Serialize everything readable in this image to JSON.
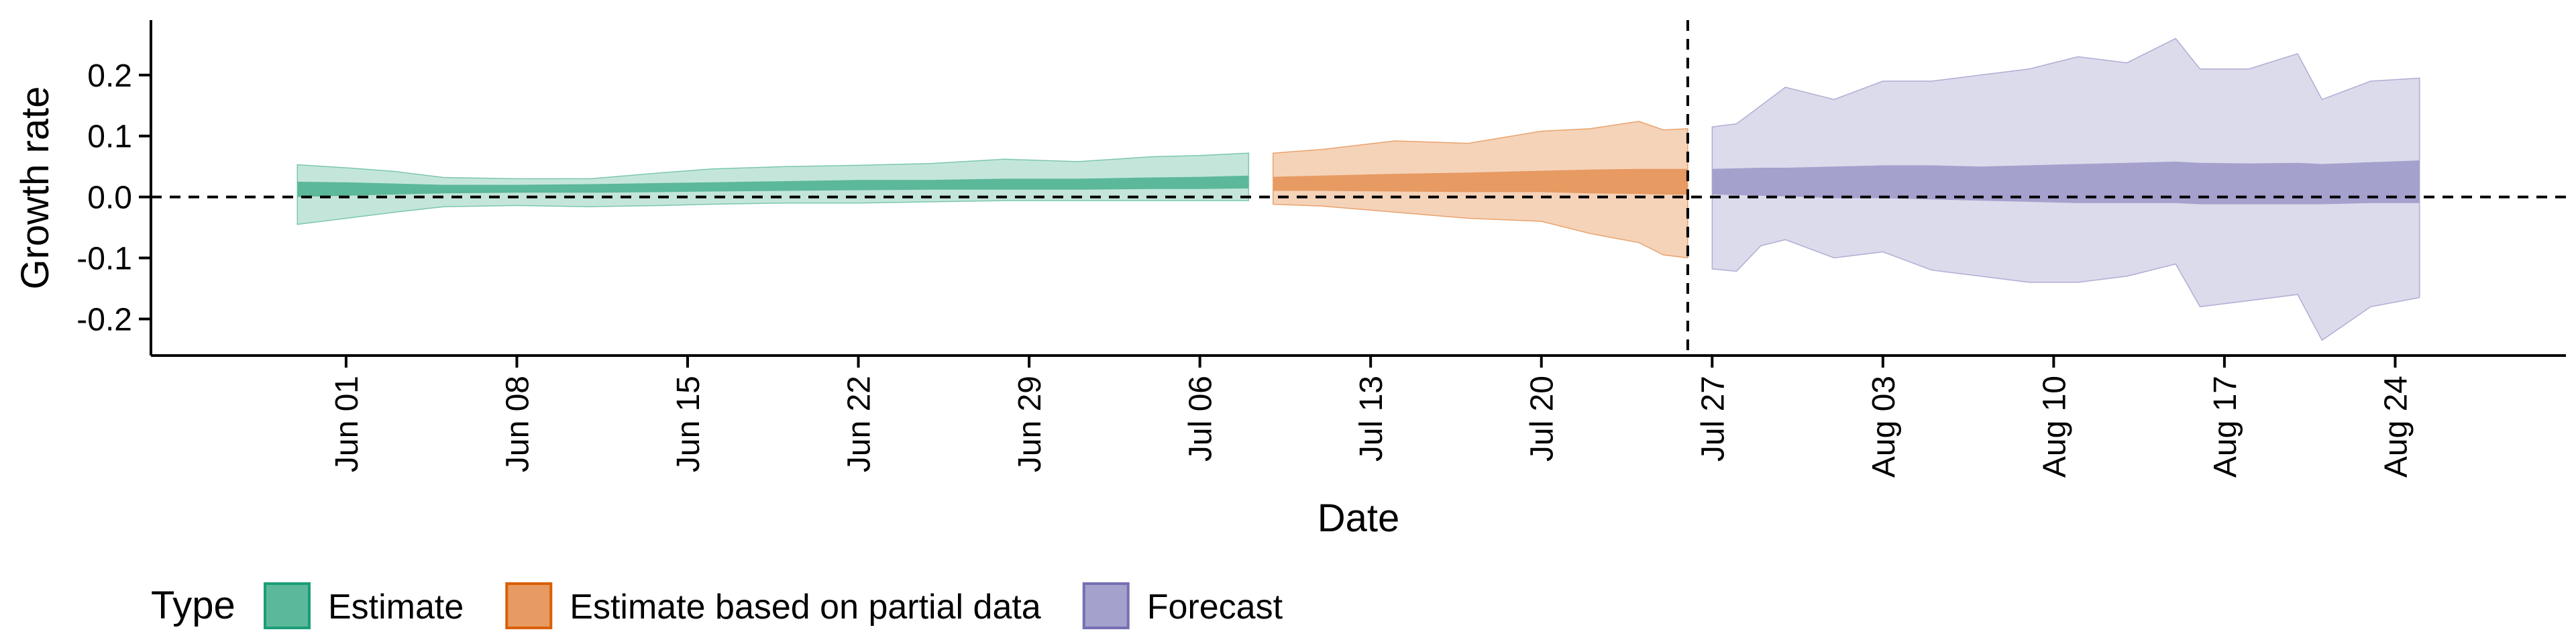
{
  "chart_data": {
    "type": "area",
    "xlabel": "Date",
    "ylabel": "Growth rate",
    "xlim": [
      "2020-05-24",
      "2020-08-31"
    ],
    "ylim": [
      -0.26,
      0.29
    ],
    "x_ticks": [
      "2020-06-01",
      "2020-06-08",
      "2020-06-15",
      "2020-06-22",
      "2020-06-29",
      "2020-07-06",
      "2020-07-13",
      "2020-07-20",
      "2020-07-27",
      "2020-08-03",
      "2020-08-10",
      "2020-08-17",
      "2020-08-24"
    ],
    "x_tick_labels": [
      "Jun 01",
      "Jun 08",
      "Jun 15",
      "Jun 22",
      "Jun 29",
      "Jul 06",
      "Jul 13",
      "Jul 20",
      "Jul 27",
      "Aug 03",
      "Aug 10",
      "Aug 17",
      "Aug 24"
    ],
    "y_ticks": [
      -0.2,
      -0.1,
      0.0,
      0.1,
      0.2
    ],
    "y_tick_labels": [
      "-0.2",
      "-0.1",
      "0.0",
      "0.1",
      "0.2"
    ],
    "reference_lines": {
      "horizontal_y": 0.0,
      "vertical_x": "2020-07-26"
    },
    "grid": false,
    "legend": {
      "title": "Type",
      "position": "bottom-left",
      "entries": [
        "Estimate",
        "Estimate based on partial data",
        "Forecast"
      ]
    },
    "series": [
      {
        "name": "Estimate",
        "color_inner": "#5cb89a",
        "color_outer": "#c4e6da",
        "color_line": "#1b9e77",
        "points": [
          {
            "x": "2020-05-30",
            "lo90": -0.045,
            "lo50": 0.0,
            "hi50": 0.025,
            "hi90": 0.053
          },
          {
            "x": "2020-06-01",
            "lo90": -0.035,
            "lo50": 0.002,
            "hi50": 0.024,
            "hi90": 0.048
          },
          {
            "x": "2020-06-03",
            "lo90": -0.025,
            "lo50": 0.004,
            "hi50": 0.022,
            "hi90": 0.042
          },
          {
            "x": "2020-06-05",
            "lo90": -0.016,
            "lo50": 0.006,
            "hi50": 0.02,
            "hi90": 0.032
          },
          {
            "x": "2020-06-08",
            "lo90": -0.014,
            "lo50": 0.007,
            "hi50": 0.02,
            "hi90": 0.03
          },
          {
            "x": "2020-06-11",
            "lo90": -0.016,
            "lo50": 0.007,
            "hi50": 0.021,
            "hi90": 0.03
          },
          {
            "x": "2020-06-14",
            "lo90": -0.014,
            "lo50": 0.008,
            "hi50": 0.023,
            "hi90": 0.04
          },
          {
            "x": "2020-06-16",
            "lo90": -0.012,
            "lo50": 0.009,
            "hi50": 0.024,
            "hi90": 0.046
          },
          {
            "x": "2020-06-19",
            "lo90": -0.01,
            "lo50": 0.01,
            "hi50": 0.026,
            "hi90": 0.05
          },
          {
            "x": "2020-06-22",
            "lo90": -0.01,
            "lo50": 0.011,
            "hi50": 0.028,
            "hi90": 0.052
          },
          {
            "x": "2020-06-25",
            "lo90": -0.008,
            "lo50": 0.012,
            "hi50": 0.028,
            "hi90": 0.055
          },
          {
            "x": "2020-06-28",
            "lo90": -0.006,
            "lo50": 0.012,
            "hi50": 0.03,
            "hi90": 0.062
          },
          {
            "x": "2020-07-01",
            "lo90": -0.006,
            "lo50": 0.012,
            "hi50": 0.03,
            "hi90": 0.058
          },
          {
            "x": "2020-07-04",
            "lo90": -0.006,
            "lo50": 0.013,
            "hi50": 0.032,
            "hi90": 0.066
          },
          {
            "x": "2020-07-06",
            "lo90": -0.006,
            "lo50": 0.013,
            "hi50": 0.033,
            "hi90": 0.068
          },
          {
            "x": "2020-07-08",
            "lo90": -0.006,
            "lo50": 0.014,
            "hi50": 0.035,
            "hi90": 0.072
          }
        ]
      },
      {
        "name": "Estimate based on partial data",
        "color_inner": "#e79a62",
        "color_outer": "#f5d3b9",
        "color_line": "#d95f02",
        "points": [
          {
            "x": "2020-07-09",
            "lo90": -0.012,
            "lo50": 0.01,
            "hi50": 0.033,
            "hi90": 0.072
          },
          {
            "x": "2020-07-11",
            "lo90": -0.015,
            "lo50": 0.01,
            "hi50": 0.035,
            "hi90": 0.078
          },
          {
            "x": "2020-07-14",
            "lo90": -0.025,
            "lo50": 0.009,
            "hi50": 0.038,
            "hi90": 0.092
          },
          {
            "x": "2020-07-17",
            "lo90": -0.035,
            "lo50": 0.008,
            "hi50": 0.04,
            "hi90": 0.088
          },
          {
            "x": "2020-07-20",
            "lo90": -0.04,
            "lo50": 0.008,
            "hi50": 0.043,
            "hi90": 0.108
          },
          {
            "x": "2020-07-22",
            "lo90": -0.06,
            "lo50": 0.006,
            "hi50": 0.045,
            "hi90": 0.112
          },
          {
            "x": "2020-07-24",
            "lo90": -0.075,
            "lo50": 0.005,
            "hi50": 0.046,
            "hi90": 0.124
          },
          {
            "x": "2020-07-25",
            "lo90": -0.095,
            "lo50": 0.004,
            "hi50": 0.046,
            "hi90": 0.11
          },
          {
            "x": "2020-07-26",
            "lo90": -0.1,
            "lo50": 0.004,
            "hi50": 0.046,
            "hi90": 0.112
          }
        ]
      },
      {
        "name": "Forecast",
        "color_inner": "#a4a1cd",
        "color_outer": "#dcdbec",
        "color_line": "#7570b3",
        "points": [
          {
            "x": "2020-07-27",
            "lo90": -0.118,
            "lo50": 0.004,
            "hi50": 0.046,
            "hi90": 0.115
          },
          {
            "x": "2020-07-28",
            "lo90": -0.122,
            "lo50": 0.003,
            "hi50": 0.047,
            "hi90": 0.12
          },
          {
            "x": "2020-07-29",
            "lo90": -0.08,
            "lo50": 0.002,
            "hi50": 0.048,
            "hi90": 0.15
          },
          {
            "x": "2020-07-30",
            "lo90": -0.07,
            "lo50": 0.001,
            "hi50": 0.048,
            "hi90": 0.18
          },
          {
            "x": "2020-08-01",
            "lo90": -0.1,
            "lo50": -0.002,
            "hi50": 0.05,
            "hi90": 0.16
          },
          {
            "x": "2020-08-03",
            "lo90": -0.09,
            "lo50": -0.002,
            "hi50": 0.052,
            "hi90": 0.19
          },
          {
            "x": "2020-08-05",
            "lo90": -0.12,
            "lo50": -0.004,
            "hi50": 0.052,
            "hi90": 0.19
          },
          {
            "x": "2020-08-07",
            "lo90": -0.13,
            "lo50": -0.006,
            "hi50": 0.05,
            "hi90": 0.2
          },
          {
            "x": "2020-08-09",
            "lo90": -0.14,
            "lo50": -0.008,
            "hi50": 0.052,
            "hi90": 0.21
          },
          {
            "x": "2020-08-11",
            "lo90": -0.14,
            "lo50": -0.01,
            "hi50": 0.054,
            "hi90": 0.23
          },
          {
            "x": "2020-08-13",
            "lo90": -0.13,
            "lo50": -0.01,
            "hi50": 0.056,
            "hi90": 0.22
          },
          {
            "x": "2020-08-15",
            "lo90": -0.11,
            "lo50": -0.01,
            "hi50": 0.058,
            "hi90": 0.26
          },
          {
            "x": "2020-08-16",
            "lo90": -0.18,
            "lo50": -0.012,
            "hi50": 0.056,
            "hi90": 0.21
          },
          {
            "x": "2020-08-18",
            "lo90": -0.17,
            "lo50": -0.012,
            "hi50": 0.055,
            "hi90": 0.21
          },
          {
            "x": "2020-08-20",
            "lo90": -0.16,
            "lo50": -0.012,
            "hi50": 0.056,
            "hi90": 0.235
          },
          {
            "x": "2020-08-21",
            "lo90": -0.235,
            "lo50": -0.012,
            "hi50": 0.054,
            "hi90": 0.16
          },
          {
            "x": "2020-08-23",
            "lo90": -0.18,
            "lo50": -0.01,
            "hi50": 0.057,
            "hi90": 0.19
          },
          {
            "x": "2020-08-25",
            "lo90": -0.165,
            "lo50": -0.01,
            "hi50": 0.06,
            "hi90": 0.195
          }
        ]
      }
    ]
  }
}
